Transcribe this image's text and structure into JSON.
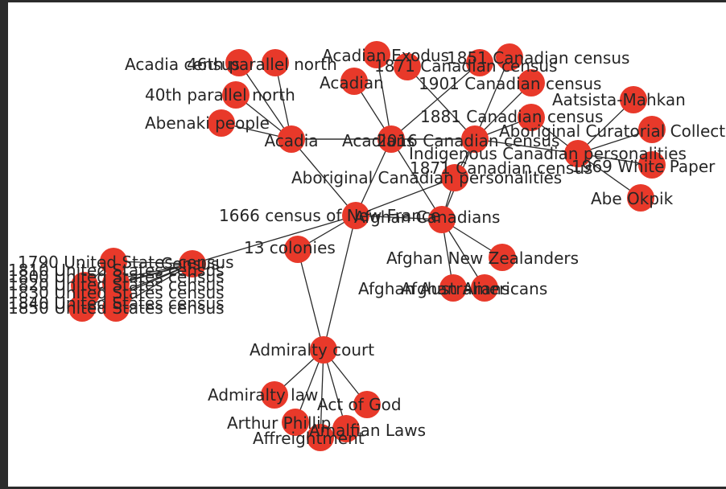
{
  "diagram": {
    "node_color": "#e8392a",
    "edge_color": "#2a2a2a",
    "label_color": "#262626",
    "nodes": [
      {
        "id": "acadia",
        "label": "Acadia"
      },
      {
        "id": "acadia_census",
        "label": "Acadia census"
      },
      {
        "id": "p46",
        "label": "46th parallel north"
      },
      {
        "id": "p40",
        "label": "40th parallel north"
      },
      {
        "id": "abenaki",
        "label": "Abenaki people"
      },
      {
        "id": "1666",
        "label": "1666 census of New France"
      },
      {
        "id": "acadians",
        "label": "Acadians"
      },
      {
        "id": "acadian_exodus",
        "label": "Acadian Exodus"
      },
      {
        "id": "acadian",
        "label": "Acadian"
      },
      {
        "id": "c1871",
        "label": "1871 Canadian census"
      },
      {
        "id": "c1851",
        "label": "1851 Canadian census"
      },
      {
        "id": "c1901",
        "label": "1901 Canadian census"
      },
      {
        "id": "c1881",
        "label": "1881 Canadian census"
      },
      {
        "id": "c2016",
        "label": "2016 Canadian census"
      },
      {
        "id": "c1871b",
        "label": "1871 Canadian census"
      },
      {
        "id": "indig",
        "label": "Indigenous Canadian personalities"
      },
      {
        "id": "aatsista",
        "label": "Aatsista-Mahkan"
      },
      {
        "id": "curatorial",
        "label": "Aboriginal Curatorial Collective"
      },
      {
        "id": "white_paper",
        "label": "1969 White Paper"
      },
      {
        "id": "abe",
        "label": "Abe Okpik"
      },
      {
        "id": "abor_pers",
        "label": "Aboriginal Canadian personalities"
      },
      {
        "id": "afghan_can",
        "label": "Afghan Canadians"
      },
      {
        "id": "afghan_nz",
        "label": "Afghan New Zealanders"
      },
      {
        "id": "afghan_au",
        "label": "Afghan Australians"
      },
      {
        "id": "afghan_am",
        "label": "Afghan Americans"
      },
      {
        "id": "colonies",
        "label": "13 colonies"
      },
      {
        "id": "admiralty_court",
        "label": "Admiralty court"
      },
      {
        "id": "admiralty_law",
        "label": "Admiralty law"
      },
      {
        "id": "act_of_god",
        "label": "Act of God"
      },
      {
        "id": "arthur",
        "label": "Arthur Phillip"
      },
      {
        "id": "amalfian",
        "label": "Amalfian Laws"
      },
      {
        "id": "affreightment",
        "label": "Affreightment"
      },
      {
        "id": "census",
        "label": "Census"
      },
      {
        "id": "us1790",
        "label": "1790 United States census"
      },
      {
        "id": "us1800",
        "label": "1800 United States census"
      },
      {
        "id": "us1810",
        "label": "1810 United States census"
      },
      {
        "id": "us1820",
        "label": "1820 United States census"
      },
      {
        "id": "us1830",
        "label": "1830 United States census"
      },
      {
        "id": "us1840",
        "label": "1840 United States census"
      },
      {
        "id": "us1850",
        "label": "1850 United States census"
      }
    ],
    "edges": [
      [
        "acadia",
        "acadia_census"
      ],
      [
        "acadia",
        "p46"
      ],
      [
        "acadia",
        "p40"
      ],
      [
        "acadia",
        "abenaki"
      ],
      [
        "acadia",
        "acadians"
      ],
      [
        "acadia",
        "1666"
      ],
      [
        "acadia",
        "c2016"
      ],
      [
        "acadians",
        "acadian_exodus"
      ],
      [
        "acadians",
        "acadian"
      ],
      [
        "acadians",
        "c1851"
      ],
      [
        "acadians",
        "1666"
      ],
      [
        "acadians",
        "afghan_can"
      ],
      [
        "acadians",
        "c2016"
      ],
      [
        "c2016",
        "c1871"
      ],
      [
        "c2016",
        "c1901"
      ],
      [
        "c2016",
        "c1881"
      ],
      [
        "c2016",
        "c1871b"
      ],
      [
        "c2016",
        "indig"
      ],
      [
        "c2016",
        "abor_pers"
      ],
      [
        "c2016",
        "afghan_can"
      ],
      [
        "indig",
        "aatsista"
      ],
      [
        "indig",
        "curatorial"
      ],
      [
        "indig",
        "white_paper"
      ],
      [
        "indig",
        "abe"
      ],
      [
        "indig",
        "c1871b"
      ],
      [
        "abor_pers",
        "afghan_can"
      ],
      [
        "abor_pers",
        "1666"
      ],
      [
        "afghan_can",
        "afghan_nz"
      ],
      [
        "afghan_can",
        "afghan_au"
      ],
      [
        "afghan_can",
        "afghan_am"
      ],
      [
        "afghan_can",
        "1666"
      ],
      [
        "1666",
        "census"
      ],
      [
        "1666",
        "admiralty_court"
      ],
      [
        "1666",
        "colonies"
      ],
      [
        "colonies",
        "admiralty_court"
      ],
      [
        "admiralty_court",
        "admiralty_law"
      ],
      [
        "admiralty_court",
        "act_of_god"
      ],
      [
        "admiralty_court",
        "arthur"
      ],
      [
        "admiralty_court",
        "amalfian"
      ],
      [
        "admiralty_court",
        "affreightment"
      ],
      [
        "census",
        "us1790"
      ],
      [
        "census",
        "us1800"
      ],
      [
        "census",
        "us1810"
      ],
      [
        "census",
        "us1820"
      ],
      [
        "census",
        "us1830"
      ],
      [
        "census",
        "us1840"
      ],
      [
        "census",
        "us1850"
      ],
      [
        "us1790",
        "us1800"
      ],
      [
        "us1810",
        "us1820"
      ]
    ]
  }
}
